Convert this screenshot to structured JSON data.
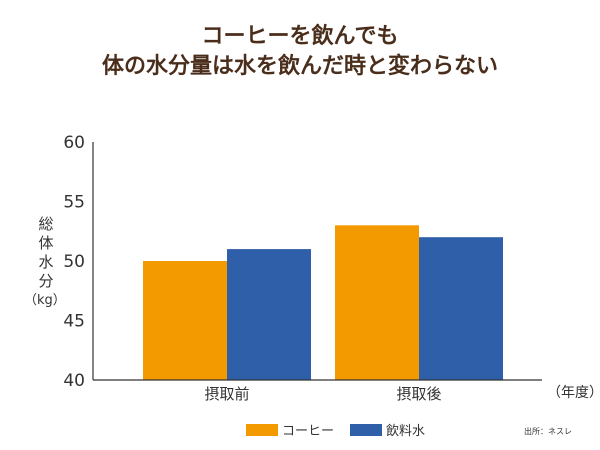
{
  "chart_data": {
    "type": "bar",
    "title_lines": [
      "コーヒーを飲んでも",
      "体の水分量は水を飲んだ時と変わらない"
    ],
    "ylabel_chars": [
      "総",
      "体",
      "水",
      "分"
    ],
    "ylabel_unit": "（kg）",
    "xunit": "（年度）",
    "categories": [
      "摂取前",
      "摂取後"
    ],
    "series": [
      {
        "name": "コーヒー",
        "color": "#f29a00",
        "values": [
          50.0,
          53.0
        ]
      },
      {
        "name": "飲料水",
        "color": "#2e5fa8",
        "values": [
          51.0,
          52.0
        ]
      }
    ],
    "ylim": [
      40,
      60
    ],
    "yticks": [
      40,
      45,
      50,
      55,
      60
    ],
    "grid": false,
    "legend_position": "bottom-center"
  },
  "source": "出所：ネスレ"
}
